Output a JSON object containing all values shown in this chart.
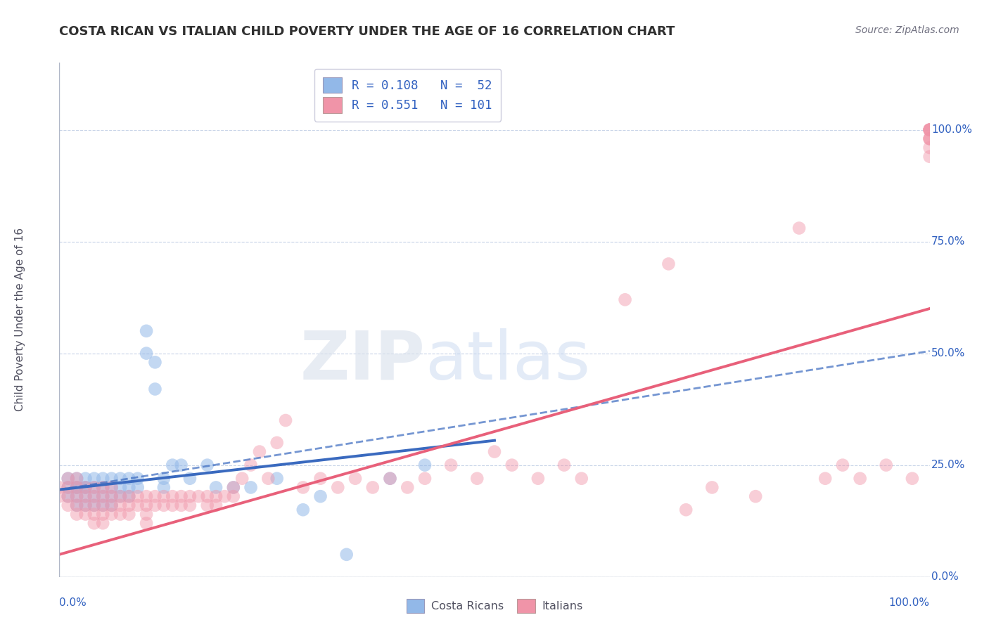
{
  "title": "COSTA RICAN VS ITALIAN CHILD POVERTY UNDER THE AGE OF 16 CORRELATION CHART",
  "source": "Source: ZipAtlas.com",
  "ylabel": "Child Poverty Under the Age of 16",
  "watermark_zip": "ZIP",
  "watermark_atlas": "atlas",
  "legend_line1": "R = 0.108   N =  52",
  "legend_line2": "R = 0.551   N = 101",
  "blue_color": "#92b8e8",
  "pink_color": "#f094a8",
  "blue_line_color": "#3a6abf",
  "pink_line_color": "#e8607a",
  "legend_text_color": "#3060c0",
  "title_color": "#303030",
  "axis_label_color": "#3060c0",
  "background_color": "#ffffff",
  "grid_color": "#c8d4e8",
  "xlim": [
    0,
    1.0
  ],
  "ylim": [
    0,
    1.15
  ],
  "blue_scatter_x": [
    0.01,
    0.01,
    0.01,
    0.02,
    0.02,
    0.02,
    0.02,
    0.02,
    0.03,
    0.03,
    0.03,
    0.03,
    0.03,
    0.04,
    0.04,
    0.04,
    0.04,
    0.05,
    0.05,
    0.05,
    0.05,
    0.06,
    0.06,
    0.06,
    0.06,
    0.07,
    0.07,
    0.07,
    0.08,
    0.08,
    0.08,
    0.09,
    0.09,
    0.1,
    0.1,
    0.11,
    0.11,
    0.12,
    0.12,
    0.13,
    0.14,
    0.15,
    0.17,
    0.18,
    0.2,
    0.22,
    0.25,
    0.28,
    0.3,
    0.33,
    0.38,
    0.42
  ],
  "blue_scatter_y": [
    0.2,
    0.22,
    0.18,
    0.2,
    0.22,
    0.18,
    0.2,
    0.16,
    0.2,
    0.22,
    0.18,
    0.16,
    0.2,
    0.2,
    0.22,
    0.18,
    0.16,
    0.22,
    0.2,
    0.18,
    0.16,
    0.22,
    0.2,
    0.18,
    0.16,
    0.22,
    0.2,
    0.18,
    0.22,
    0.2,
    0.18,
    0.22,
    0.2,
    0.55,
    0.5,
    0.48,
    0.42,
    0.22,
    0.2,
    0.25,
    0.25,
    0.22,
    0.25,
    0.2,
    0.2,
    0.2,
    0.22,
    0.15,
    0.18,
    0.05,
    0.22,
    0.25
  ],
  "pink_scatter_x": [
    0.0,
    0.0,
    0.01,
    0.01,
    0.01,
    0.01,
    0.02,
    0.02,
    0.02,
    0.02,
    0.02,
    0.03,
    0.03,
    0.03,
    0.03,
    0.04,
    0.04,
    0.04,
    0.04,
    0.04,
    0.05,
    0.05,
    0.05,
    0.05,
    0.05,
    0.06,
    0.06,
    0.06,
    0.06,
    0.07,
    0.07,
    0.07,
    0.08,
    0.08,
    0.08,
    0.09,
    0.09,
    0.1,
    0.1,
    0.1,
    0.1,
    0.11,
    0.11,
    0.12,
    0.12,
    0.13,
    0.13,
    0.14,
    0.14,
    0.15,
    0.15,
    0.16,
    0.17,
    0.17,
    0.18,
    0.18,
    0.19,
    0.2,
    0.2,
    0.21,
    0.22,
    0.23,
    0.24,
    0.25,
    0.26,
    0.28,
    0.3,
    0.32,
    0.34,
    0.36,
    0.38,
    0.4,
    0.42,
    0.45,
    0.48,
    0.5,
    0.52,
    0.55,
    0.58,
    0.6,
    0.65,
    0.7,
    0.72,
    0.75,
    0.8,
    0.85,
    0.88,
    0.9,
    0.92,
    0.95,
    0.98,
    1.0,
    1.0,
    1.0,
    1.0,
    1.0,
    1.0,
    1.0,
    1.0,
    1.0,
    1.0
  ],
  "pink_scatter_y": [
    0.2,
    0.18,
    0.22,
    0.2,
    0.18,
    0.16,
    0.22,
    0.2,
    0.18,
    0.16,
    0.14,
    0.2,
    0.18,
    0.16,
    0.14,
    0.2,
    0.18,
    0.16,
    0.14,
    0.12,
    0.2,
    0.18,
    0.16,
    0.14,
    0.12,
    0.2,
    0.18,
    0.16,
    0.14,
    0.18,
    0.16,
    0.14,
    0.18,
    0.16,
    0.14,
    0.18,
    0.16,
    0.18,
    0.16,
    0.14,
    0.12,
    0.18,
    0.16,
    0.18,
    0.16,
    0.18,
    0.16,
    0.18,
    0.16,
    0.18,
    0.16,
    0.18,
    0.18,
    0.16,
    0.18,
    0.16,
    0.18,
    0.2,
    0.18,
    0.22,
    0.25,
    0.28,
    0.22,
    0.3,
    0.35,
    0.2,
    0.22,
    0.2,
    0.22,
    0.2,
    0.22,
    0.2,
    0.22,
    0.25,
    0.22,
    0.28,
    0.25,
    0.22,
    0.25,
    0.22,
    0.62,
    0.7,
    0.15,
    0.2,
    0.18,
    0.78,
    0.22,
    0.25,
    0.22,
    0.25,
    0.22,
    1.0,
    1.0,
    0.98,
    1.0,
    0.98,
    1.0,
    0.96,
    0.98,
    0.94,
    1.0
  ],
  "blue_trend_x": [
    0.0,
    0.5
  ],
  "blue_trend_y": [
    0.195,
    0.305
  ],
  "pink_trend_x": [
    0.0,
    1.0
  ],
  "pink_trend_y": [
    0.05,
    0.6
  ],
  "yticks": [
    0.0,
    0.25,
    0.5,
    0.75,
    1.0
  ],
  "ytick_labels": [
    "0.0%",
    "25.0%",
    "50.0%",
    "75.0%",
    "100.0%"
  ]
}
